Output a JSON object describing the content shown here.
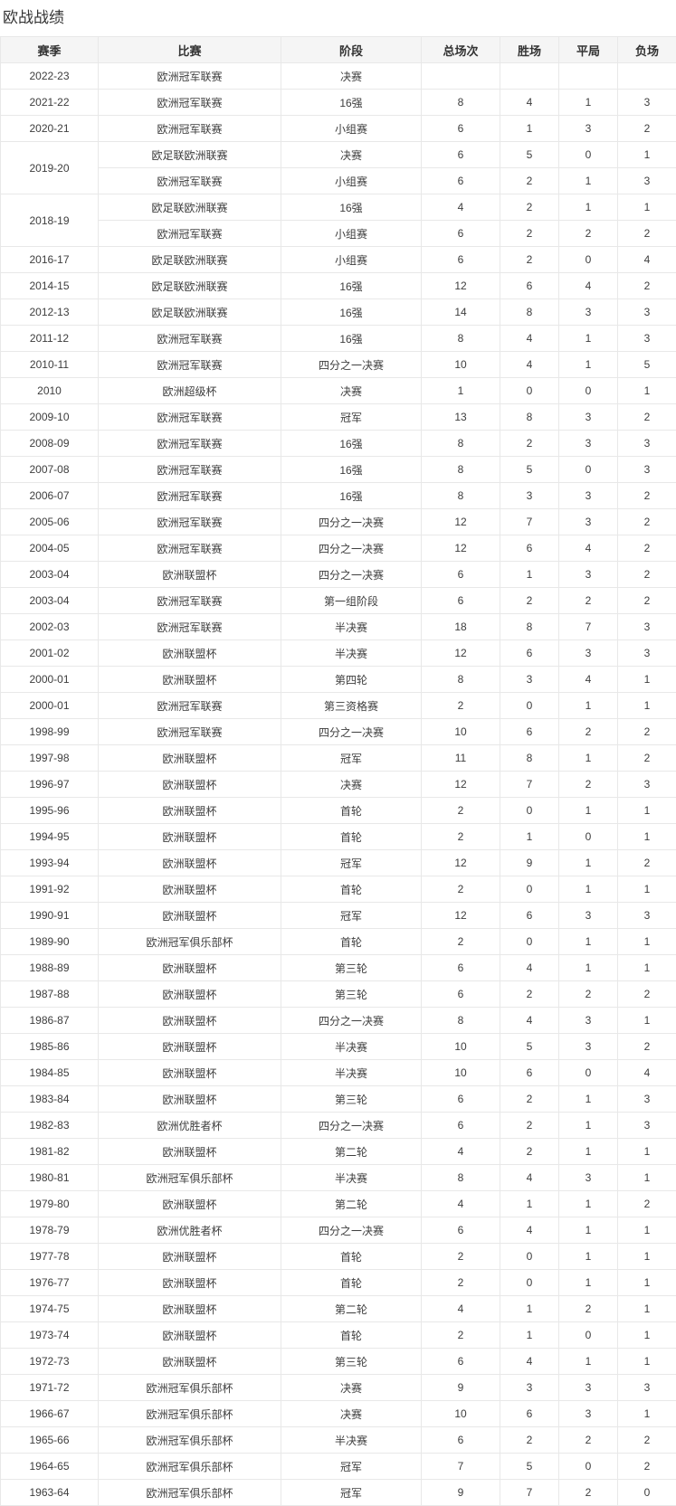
{
  "page_title": "欧战战绩",
  "colors": {
    "header_background": "#f5f5f5",
    "border": "#e8e8e8",
    "text": "#333333"
  },
  "table": {
    "headers": [
      "赛季",
      "比赛",
      "阶段",
      "总场次",
      "胜场",
      "平局",
      "负场"
    ],
    "rows": [
      {
        "season": "2022-23",
        "rowspan": 1,
        "competition": "欧洲冠军联赛",
        "stage": "决赛",
        "total": "",
        "wins": "",
        "draws": "",
        "losses": ""
      },
      {
        "season": "2021-22",
        "rowspan": 1,
        "competition": "欧洲冠军联赛",
        "stage": "16强",
        "total": 8,
        "wins": 4,
        "draws": 1,
        "losses": 3
      },
      {
        "season": "2020-21",
        "rowspan": 1,
        "competition": "欧洲冠军联赛",
        "stage": "小组赛",
        "total": 6,
        "wins": 1,
        "draws": 3,
        "losses": 2
      },
      {
        "season": "2019-20",
        "rowspan": 2,
        "competition": "欧足联欧洲联赛",
        "stage": "决赛",
        "total": 6,
        "wins": 5,
        "draws": 0,
        "losses": 1
      },
      {
        "season": null,
        "competition": "欧洲冠军联赛",
        "stage": "小组赛",
        "total": 6,
        "wins": 2,
        "draws": 1,
        "losses": 3
      },
      {
        "season": "2018-19",
        "rowspan": 2,
        "competition": "欧足联欧洲联赛",
        "stage": "16强",
        "total": 4,
        "wins": 2,
        "draws": 1,
        "losses": 1
      },
      {
        "season": null,
        "competition": "欧洲冠军联赛",
        "stage": "小组赛",
        "total": 6,
        "wins": 2,
        "draws": 2,
        "losses": 2
      },
      {
        "season": "2016-17",
        "rowspan": 1,
        "competition": "欧足联欧洲联赛",
        "stage": "小组赛",
        "total": 6,
        "wins": 2,
        "draws": 0,
        "losses": 4
      },
      {
        "season": "2014-15",
        "rowspan": 1,
        "competition": "欧足联欧洲联赛",
        "stage": "16强",
        "total": 12,
        "wins": 6,
        "draws": 4,
        "losses": 2
      },
      {
        "season": "2012-13",
        "rowspan": 1,
        "competition": "欧足联欧洲联赛",
        "stage": "16强",
        "total": 14,
        "wins": 8,
        "draws": 3,
        "losses": 3
      },
      {
        "season": "2011-12",
        "rowspan": 1,
        "competition": "欧洲冠军联赛",
        "stage": "16强",
        "total": 8,
        "wins": 4,
        "draws": 1,
        "losses": 3
      },
      {
        "season": "2010-11",
        "rowspan": 1,
        "competition": "欧洲冠军联赛",
        "stage": "四分之一决赛",
        "total": 10,
        "wins": 4,
        "draws": 1,
        "losses": 5
      },
      {
        "season": "2010",
        "rowspan": 1,
        "competition": "欧洲超级杯",
        "stage": "决赛",
        "total": 1,
        "wins": 0,
        "draws": 0,
        "losses": 1
      },
      {
        "season": "2009-10",
        "rowspan": 1,
        "competition": "欧洲冠军联赛",
        "stage": "冠军",
        "total": 13,
        "wins": 8,
        "draws": 3,
        "losses": 2
      },
      {
        "season": "2008-09",
        "rowspan": 1,
        "competition": "欧洲冠军联赛",
        "stage": "16强",
        "total": 8,
        "wins": 2,
        "draws": 3,
        "losses": 3
      },
      {
        "season": "2007-08",
        "rowspan": 1,
        "competition": "欧洲冠军联赛",
        "stage": "16强",
        "total": 8,
        "wins": 5,
        "draws": 0,
        "losses": 3
      },
      {
        "season": "2006-07",
        "rowspan": 1,
        "competition": "欧洲冠军联赛",
        "stage": "16强",
        "total": 8,
        "wins": 3,
        "draws": 3,
        "losses": 2
      },
      {
        "season": "2005-06",
        "rowspan": 1,
        "competition": "欧洲冠军联赛",
        "stage": "四分之一决赛",
        "total": 12,
        "wins": 7,
        "draws": 3,
        "losses": 2
      },
      {
        "season": "2004-05",
        "rowspan": 1,
        "competition": "欧洲冠军联赛",
        "stage": "四分之一决赛",
        "total": 12,
        "wins": 6,
        "draws": 4,
        "losses": 2
      },
      {
        "season": "2003-04",
        "rowspan": 1,
        "competition": "欧洲联盟杯",
        "stage": "四分之一决赛",
        "total": 6,
        "wins": 1,
        "draws": 3,
        "losses": 2
      },
      {
        "season": "2003-04",
        "rowspan": 1,
        "competition": "欧洲冠军联赛",
        "stage": "第一组阶段",
        "total": 6,
        "wins": 2,
        "draws": 2,
        "losses": 2
      },
      {
        "season": "2002-03",
        "rowspan": 1,
        "competition": "欧洲冠军联赛",
        "stage": "半决赛",
        "total": 18,
        "wins": 8,
        "draws": 7,
        "losses": 3
      },
      {
        "season": "2001-02",
        "rowspan": 1,
        "competition": "欧洲联盟杯",
        "stage": "半决赛",
        "total": 12,
        "wins": 6,
        "draws": 3,
        "losses": 3
      },
      {
        "season": "2000-01",
        "rowspan": 1,
        "competition": "欧洲联盟杯",
        "stage": "第四轮",
        "total": 8,
        "wins": 3,
        "draws": 4,
        "losses": 1
      },
      {
        "season": "2000-01",
        "rowspan": 1,
        "competition": "欧洲冠军联赛",
        "stage": "第三资格赛",
        "total": 2,
        "wins": 0,
        "draws": 1,
        "losses": 1
      },
      {
        "season": "1998-99",
        "rowspan": 1,
        "competition": "欧洲冠军联赛",
        "stage": "四分之一决赛",
        "total": 10,
        "wins": 6,
        "draws": 2,
        "losses": 2
      },
      {
        "season": "1997-98",
        "rowspan": 1,
        "competition": "欧洲联盟杯",
        "stage": "冠军",
        "total": 11,
        "wins": 8,
        "draws": 1,
        "losses": 2
      },
      {
        "season": "1996-97",
        "rowspan": 1,
        "competition": "欧洲联盟杯",
        "stage": "决赛",
        "total": 12,
        "wins": 7,
        "draws": 2,
        "losses": 3
      },
      {
        "season": "1995-96",
        "rowspan": 1,
        "competition": "欧洲联盟杯",
        "stage": "首轮",
        "total": 2,
        "wins": 0,
        "draws": 1,
        "losses": 1
      },
      {
        "season": "1994-95",
        "rowspan": 1,
        "competition": "欧洲联盟杯",
        "stage": "首轮",
        "total": 2,
        "wins": 1,
        "draws": 0,
        "losses": 1
      },
      {
        "season": "1993-94",
        "rowspan": 1,
        "competition": "欧洲联盟杯",
        "stage": "冠军",
        "total": 12,
        "wins": 9,
        "draws": 1,
        "losses": 2
      },
      {
        "season": "1991-92",
        "rowspan": 1,
        "competition": "欧洲联盟杯",
        "stage": "首轮",
        "total": 2,
        "wins": 0,
        "draws": 1,
        "losses": 1
      },
      {
        "season": "1990-91",
        "rowspan": 1,
        "competition": "欧洲联盟杯",
        "stage": "冠军",
        "total": 12,
        "wins": 6,
        "draws": 3,
        "losses": 3
      },
      {
        "season": "1989-90",
        "rowspan": 1,
        "competition": "欧洲冠军俱乐部杯",
        "stage": "首轮",
        "total": 2,
        "wins": 0,
        "draws": 1,
        "losses": 1
      },
      {
        "season": "1988-89",
        "rowspan": 1,
        "competition": "欧洲联盟杯",
        "stage": "第三轮",
        "total": 6,
        "wins": 4,
        "draws": 1,
        "losses": 1
      },
      {
        "season": "1987-88",
        "rowspan": 1,
        "competition": "欧洲联盟杯",
        "stage": "第三轮",
        "total": 6,
        "wins": 2,
        "draws": 2,
        "losses": 2
      },
      {
        "season": "1986-87",
        "rowspan": 1,
        "competition": "欧洲联盟杯",
        "stage": "四分之一决赛",
        "total": 8,
        "wins": 4,
        "draws": 3,
        "losses": 1
      },
      {
        "season": "1985-86",
        "rowspan": 1,
        "competition": "欧洲联盟杯",
        "stage": "半决赛",
        "total": 10,
        "wins": 5,
        "draws": 3,
        "losses": 2
      },
      {
        "season": "1984-85",
        "rowspan": 1,
        "competition": "欧洲联盟杯",
        "stage": "半决赛",
        "total": 10,
        "wins": 6,
        "draws": 0,
        "losses": 4
      },
      {
        "season": "1983-84",
        "rowspan": 1,
        "competition": "欧洲联盟杯",
        "stage": "第三轮",
        "total": 6,
        "wins": 2,
        "draws": 1,
        "losses": 3
      },
      {
        "season": "1982-83",
        "rowspan": 1,
        "competition": "欧洲优胜者杯",
        "stage": "四分之一决赛",
        "total": 6,
        "wins": 2,
        "draws": 1,
        "losses": 3
      },
      {
        "season": "1981-82",
        "rowspan": 1,
        "competition": "欧洲联盟杯",
        "stage": "第二轮",
        "total": 4,
        "wins": 2,
        "draws": 1,
        "losses": 1
      },
      {
        "season": "1980-81",
        "rowspan": 1,
        "competition": "欧洲冠军俱乐部杯",
        "stage": "半决赛",
        "total": 8,
        "wins": 4,
        "draws": 3,
        "losses": 1
      },
      {
        "season": "1979-80",
        "rowspan": 1,
        "competition": "欧洲联盟杯",
        "stage": "第二轮",
        "total": 4,
        "wins": 1,
        "draws": 1,
        "losses": 2
      },
      {
        "season": "1978-79",
        "rowspan": 1,
        "competition": "欧洲优胜者杯",
        "stage": "四分之一决赛",
        "total": 6,
        "wins": 4,
        "draws": 1,
        "losses": 1
      },
      {
        "season": "1977-78",
        "rowspan": 1,
        "competition": "欧洲联盟杯",
        "stage": "首轮",
        "total": 2,
        "wins": 0,
        "draws": 1,
        "losses": 1
      },
      {
        "season": "1976-77",
        "rowspan": 1,
        "competition": "欧洲联盟杯",
        "stage": "首轮",
        "total": 2,
        "wins": 0,
        "draws": 1,
        "losses": 1
      },
      {
        "season": "1974-75",
        "rowspan": 1,
        "competition": "欧洲联盟杯",
        "stage": "第二轮",
        "total": 4,
        "wins": 1,
        "draws": 2,
        "losses": 1
      },
      {
        "season": "1973-74",
        "rowspan": 1,
        "competition": "欧洲联盟杯",
        "stage": "首轮",
        "total": 2,
        "wins": 1,
        "draws": 0,
        "losses": 1
      },
      {
        "season": "1972-73",
        "rowspan": 1,
        "competition": "欧洲联盟杯",
        "stage": "第三轮",
        "total": 6,
        "wins": 4,
        "draws": 1,
        "losses": 1
      },
      {
        "season": "1971-72",
        "rowspan": 1,
        "competition": "欧洲冠军俱乐部杯",
        "stage": "决赛",
        "total": 9,
        "wins": 3,
        "draws": 3,
        "losses": 3
      },
      {
        "season": "1966-67",
        "rowspan": 1,
        "competition": "欧洲冠军俱乐部杯",
        "stage": "决赛",
        "total": 10,
        "wins": 6,
        "draws": 3,
        "losses": 1
      },
      {
        "season": "1965-66",
        "rowspan": 1,
        "competition": "欧洲冠军俱乐部杯",
        "stage": "半决赛",
        "total": 6,
        "wins": 2,
        "draws": 2,
        "losses": 2
      },
      {
        "season": "1964-65",
        "rowspan": 1,
        "competition": "欧洲冠军俱乐部杯",
        "stage": "冠军",
        "total": 7,
        "wins": 5,
        "draws": 0,
        "losses": 2
      },
      {
        "season": "1963-64",
        "rowspan": 1,
        "competition": "欧洲冠军俱乐部杯",
        "stage": "冠军",
        "total": 9,
        "wins": 7,
        "draws": 2,
        "losses": 0
      }
    ]
  }
}
